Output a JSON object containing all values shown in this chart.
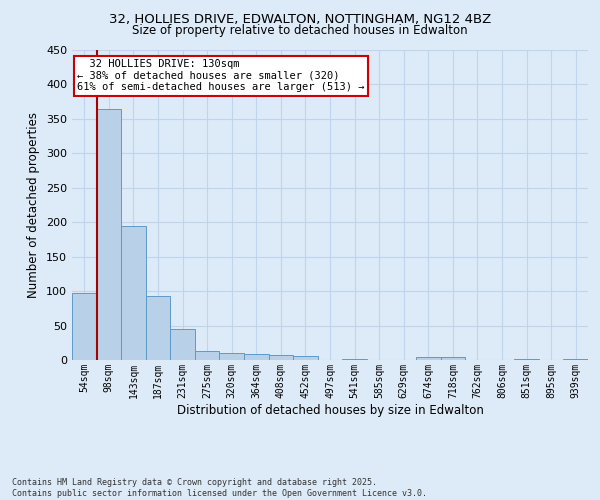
{
  "title_line1": "32, HOLLIES DRIVE, EDWALTON, NOTTINGHAM, NG12 4BZ",
  "title_line2": "Size of property relative to detached houses in Edwalton",
  "xlabel": "Distribution of detached houses by size in Edwalton",
  "ylabel": "Number of detached properties",
  "categories": [
    "54sqm",
    "98sqm",
    "143sqm",
    "187sqm",
    "231sqm",
    "275sqm",
    "320sqm",
    "364sqm",
    "408sqm",
    "452sqm",
    "497sqm",
    "541sqm",
    "585sqm",
    "629sqm",
    "674sqm",
    "718sqm",
    "762sqm",
    "806sqm",
    "851sqm",
    "895sqm",
    "939sqm"
  ],
  "values": [
    97,
    365,
    195,
    93,
    45,
    13,
    10,
    9,
    7,
    6,
    0,
    1,
    0,
    0,
    5,
    5,
    0,
    0,
    1,
    0,
    2
  ],
  "bar_color": "#b8d0e8",
  "bar_edge_color": "#5a9aca",
  "grid_color": "#c0d4ec",
  "background_color": "#ddeaf7",
  "red_line_color": "#aa0000",
  "annotation_text": "  32 HOLLIES DRIVE: 130sqm\n← 38% of detached houses are smaller (320)\n61% of semi-detached houses are larger (513) →",
  "annotation_box_color": "#ffffff",
  "annotation_box_edge_color": "#cc0000",
  "footer_text": "Contains HM Land Registry data © Crown copyright and database right 2025.\nContains public sector information licensed under the Open Government Licence v3.0.",
  "ylim": [
    0,
    450
  ],
  "yticks": [
    0,
    50,
    100,
    150,
    200,
    250,
    300,
    350,
    400,
    450
  ]
}
